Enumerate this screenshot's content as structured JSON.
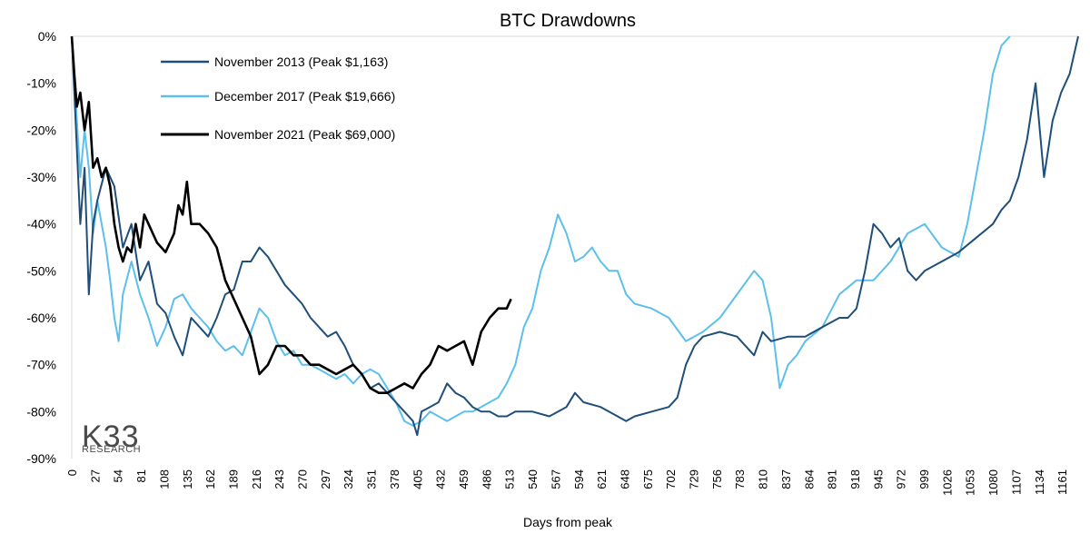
{
  "chart_data": {
    "type": "line",
    "title": "BTC Drawdowns",
    "xlabel": "Days from peak",
    "ylabel": "",
    "xlim": [
      0,
      1180
    ],
    "ylim": [
      -90,
      0
    ],
    "y_ticks": [
      "0%",
      "-10%",
      "-20%",
      "-30%",
      "-40%",
      "-50%",
      "-60%",
      "-70%",
      "-80%",
      "-90%"
    ],
    "x_ticks": [
      0,
      27,
      54,
      81,
      108,
      135,
      162,
      189,
      216,
      243,
      270,
      297,
      324,
      351,
      378,
      405,
      432,
      459,
      486,
      513,
      540,
      567,
      594,
      621,
      648,
      675,
      702,
      729,
      756,
      783,
      810,
      837,
      864,
      891,
      918,
      945,
      972,
      999,
      1026,
      1053,
      1080,
      1107,
      1134,
      1161
    ],
    "grid": false,
    "legend_position": "top-left",
    "series": [
      {
        "name": "November 2013 (Peak $1,163)",
        "color": "#1f4e79",
        "x": [
          0,
          5,
          10,
          15,
          20,
          25,
          30,
          40,
          50,
          60,
          70,
          80,
          90,
          100,
          110,
          120,
          130,
          140,
          150,
          160,
          170,
          180,
          190,
          200,
          210,
          220,
          230,
          240,
          250,
          260,
          270,
          280,
          290,
          300,
          310,
          320,
          330,
          340,
          350,
          360,
          370,
          380,
          390,
          400,
          405,
          410,
          420,
          430,
          440,
          450,
          460,
          470,
          480,
          490,
          500,
          510,
          520,
          540,
          560,
          580,
          590,
          600,
          620,
          640,
          650,
          660,
          680,
          700,
          710,
          720,
          730,
          740,
          760,
          780,
          800,
          810,
          820,
          840,
          860,
          880,
          900,
          910,
          920,
          930,
          940,
          950,
          960,
          970,
          980,
          990,
          1000,
          1020,
          1040,
          1060,
          1080,
          1090,
          1100,
          1110,
          1120,
          1130,
          1140,
          1150,
          1160,
          1170,
          1180
        ],
        "y": [
          0,
          -20,
          -40,
          -28,
          -55,
          -40,
          -35,
          -28,
          -32,
          -45,
          -40,
          -52,
          -48,
          -57,
          -59,
          -64,
          -68,
          -60,
          -62,
          -64,
          -60,
          -55,
          -54,
          -48,
          -48,
          -45,
          -47,
          -50,
          -53,
          -55,
          -57,
          -60,
          -62,
          -64,
          -63,
          -66,
          -70,
          -72,
          -75,
          -74,
          -76,
          -78,
          -80,
          -82,
          -85,
          -80,
          -79,
          -78,
          -74,
          -76,
          -77,
          -79,
          -80,
          -80,
          -81,
          -81,
          -80,
          -80,
          -81,
          -79,
          -76,
          -78,
          -79,
          -81,
          -82,
          -81,
          -80,
          -79,
          -77,
          -70,
          -66,
          -64,
          -63,
          -64,
          -68,
          -63,
          -65,
          -64,
          -64,
          -62,
          -60,
          -60,
          -58,
          -50,
          -40,
          -42,
          -45,
          -43,
          -50,
          -52,
          -50,
          -48,
          -46,
          -43,
          -40,
          -37,
          -35,
          -30,
          -22,
          -10,
          -30,
          -18,
          -12,
          -8,
          0
        ]
      },
      {
        "name": "December 2017 (Peak $19,666)",
        "color": "#5bc0eb",
        "x": [
          0,
          5,
          10,
          15,
          20,
          25,
          30,
          35,
          40,
          45,
          50,
          55,
          60,
          70,
          80,
          90,
          100,
          110,
          120,
          130,
          140,
          150,
          160,
          170,
          180,
          190,
          200,
          210,
          220,
          230,
          240,
          250,
          260,
          270,
          280,
          290,
          300,
          310,
          320,
          330,
          340,
          350,
          360,
          370,
          380,
          390,
          400,
          410,
          420,
          430,
          440,
          450,
          460,
          470,
          480,
          490,
          500,
          510,
          520,
          530,
          540,
          550,
          560,
          570,
          580,
          590,
          600,
          610,
          620,
          630,
          640,
          650,
          660,
          680,
          700,
          720,
          740,
          760,
          780,
          800,
          810,
          820,
          830,
          840,
          850,
          860,
          880,
          900,
          920,
          940,
          960,
          980,
          1000,
          1020,
          1040,
          1050,
          1060,
          1070,
          1080,
          1090,
          1100
        ],
        "y": [
          0,
          -15,
          -30,
          -20,
          -28,
          -42,
          -35,
          -40,
          -45,
          -52,
          -60,
          -65,
          -55,
          -48,
          -55,
          -60,
          -66,
          -62,
          -56,
          -55,
          -58,
          -60,
          -62,
          -65,
          -67,
          -66,
          -68,
          -63,
          -58,
          -60,
          -65,
          -68,
          -67,
          -70,
          -70,
          -71,
          -72,
          -73,
          -72,
          -74,
          -72,
          -71,
          -72,
          -75,
          -78,
          -82,
          -83,
          -82,
          -80,
          -81,
          -82,
          -81,
          -80,
          -80,
          -79,
          -78,
          -77,
          -74,
          -70,
          -62,
          -58,
          -50,
          -45,
          -38,
          -42,
          -48,
          -47,
          -45,
          -48,
          -50,
          -50,
          -55,
          -57,
          -58,
          -60,
          -65,
          -63,
          -60,
          -55,
          -50,
          -52,
          -60,
          -75,
          -70,
          -68,
          -65,
          -62,
          -55,
          -52,
          -52,
          -48,
          -42,
          -40,
          -45,
          -47,
          -40,
          -30,
          -20,
          -8,
          -2,
          0
        ]
      },
      {
        "name": "November 2021 (Peak $69,000)",
        "color": "#000000",
        "x": [
          0,
          3,
          6,
          10,
          15,
          20,
          25,
          30,
          35,
          40,
          45,
          50,
          55,
          60,
          65,
          70,
          75,
          80,
          85,
          90,
          95,
          100,
          110,
          120,
          125,
          130,
          135,
          140,
          150,
          160,
          170,
          180,
          190,
          200,
          210,
          220,
          230,
          240,
          250,
          260,
          270,
          280,
          290,
          300,
          310,
          320,
          330,
          340,
          350,
          360,
          370,
          380,
          390,
          400,
          410,
          420,
          430,
          440,
          450,
          460,
          470,
          480,
          490,
          500,
          510,
          515
        ],
        "y": [
          0,
          -8,
          -15,
          -12,
          -20,
          -14,
          -28,
          -26,
          -30,
          -28,
          -32,
          -40,
          -45,
          -48,
          -45,
          -46,
          -40,
          -45,
          -38,
          -40,
          -42,
          -44,
          -46,
          -42,
          -36,
          -38,
          -31,
          -40,
          -40,
          -42,
          -45,
          -52,
          -56,
          -60,
          -64,
          -72,
          -70,
          -66,
          -66,
          -68,
          -68,
          -70,
          -70,
          -71,
          -72,
          -71,
          -70,
          -72,
          -75,
          -76,
          -76,
          -75,
          -74,
          -75,
          -72,
          -70,
          -66,
          -67,
          -66,
          -65,
          -70,
          -63,
          -60,
          -58,
          -58,
          -56
        ]
      }
    ]
  },
  "branding": {
    "logo_text": "K33",
    "logo_subtext": "RESEARCH"
  }
}
